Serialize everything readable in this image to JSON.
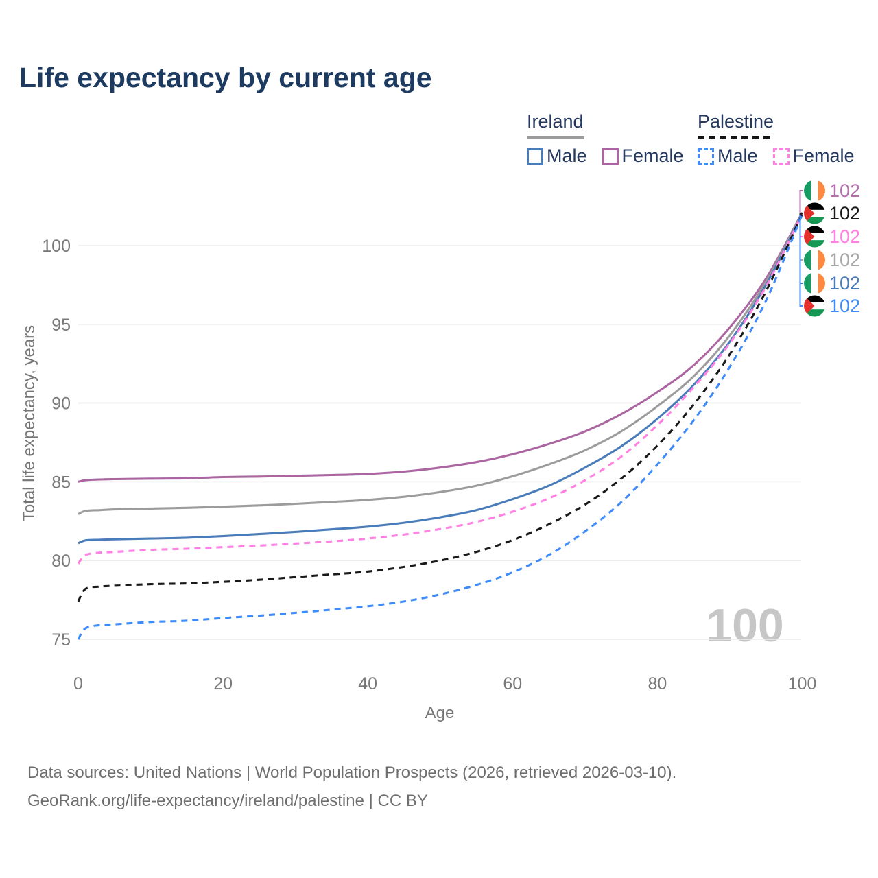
{
  "title": "Life expectancy by current age",
  "legend": {
    "groups": [
      {
        "id": "ireland",
        "label": "Ireland",
        "rule_style": "solid",
        "rule_color": "#9c9c9c",
        "items": [
          {
            "label": "Male",
            "color": "#4a7cba",
            "dashed": false
          },
          {
            "label": "Female",
            "color": "#ab65a0",
            "dashed": false
          }
        ]
      },
      {
        "id": "palestine",
        "label": "Palestine",
        "rule_style": "dashed",
        "rule_color": "#161616",
        "items": [
          {
            "label": "Male",
            "color": "#3f8bfa",
            "dashed": true
          },
          {
            "label": "Female",
            "color": "#ff82e3",
            "dashed": true
          }
        ]
      }
    ]
  },
  "chart_data": {
    "type": "line",
    "title": "Life expectancy by current age",
    "xlabel": "Age",
    "ylabel": "Total life expectancy, years",
    "xlim": [
      0,
      100
    ],
    "ylim": [
      73.5,
      102.5
    ],
    "xticks": [
      0,
      20,
      40,
      60,
      80,
      100
    ],
    "yticks": [
      75,
      80,
      85,
      90,
      95,
      100
    ],
    "grid": "horizontal",
    "legend_position": "top-right",
    "watermark": "100",
    "series": [
      {
        "name": "Ireland Female",
        "country": "Ireland",
        "sex": "Female",
        "color": "#ab65a0",
        "dashed": false,
        "points": [
          [
            0,
            85.0
          ],
          [
            1,
            85.1
          ],
          [
            3,
            85.15
          ],
          [
            5,
            85.17
          ],
          [
            10,
            85.2
          ],
          [
            15,
            85.22
          ],
          [
            20,
            85.3
          ],
          [
            25,
            85.33
          ],
          [
            30,
            85.38
          ],
          [
            35,
            85.43
          ],
          [
            40,
            85.5
          ],
          [
            45,
            85.65
          ],
          [
            50,
            85.9
          ],
          [
            55,
            86.25
          ],
          [
            60,
            86.75
          ],
          [
            65,
            87.4
          ],
          [
            70,
            88.2
          ],
          [
            75,
            89.3
          ],
          [
            80,
            90.7
          ],
          [
            85,
            92.4
          ],
          [
            90,
            94.8
          ],
          [
            95,
            97.9
          ],
          [
            100,
            102.1
          ]
        ]
      },
      {
        "name": "Ireland Both sexes",
        "country": "Ireland",
        "sex": "Both",
        "color": "#9c9c9c",
        "dashed": false,
        "points": [
          [
            0,
            82.95
          ],
          [
            1,
            83.15
          ],
          [
            3,
            83.2
          ],
          [
            5,
            83.25
          ],
          [
            10,
            83.3
          ],
          [
            15,
            83.35
          ],
          [
            20,
            83.42
          ],
          [
            25,
            83.5
          ],
          [
            30,
            83.6
          ],
          [
            35,
            83.72
          ],
          [
            40,
            83.85
          ],
          [
            45,
            84.05
          ],
          [
            50,
            84.35
          ],
          [
            55,
            84.75
          ],
          [
            60,
            85.35
          ],
          [
            65,
            86.1
          ],
          [
            70,
            87.0
          ],
          [
            75,
            88.2
          ],
          [
            80,
            89.8
          ],
          [
            85,
            91.7
          ],
          [
            90,
            94.3
          ],
          [
            95,
            97.7
          ],
          [
            100,
            102.05
          ]
        ]
      },
      {
        "name": "Ireland Male",
        "country": "Ireland",
        "sex": "Male",
        "color": "#4a7cba",
        "dashed": false,
        "points": [
          [
            0,
            81.1
          ],
          [
            1,
            81.28
          ],
          [
            3,
            81.32
          ],
          [
            5,
            81.35
          ],
          [
            10,
            81.4
          ],
          [
            15,
            81.45
          ],
          [
            20,
            81.55
          ],
          [
            25,
            81.68
          ],
          [
            30,
            81.82
          ],
          [
            35,
            81.98
          ],
          [
            40,
            82.15
          ],
          [
            45,
            82.4
          ],
          [
            50,
            82.75
          ],
          [
            55,
            83.2
          ],
          [
            60,
            83.9
          ],
          [
            65,
            84.75
          ],
          [
            70,
            85.9
          ],
          [
            75,
            87.25
          ],
          [
            80,
            89.0
          ],
          [
            85,
            91.15
          ],
          [
            90,
            93.9
          ],
          [
            95,
            97.5
          ],
          [
            100,
            102.0
          ]
        ]
      },
      {
        "name": "Palestine Female",
        "country": "Palestine",
        "sex": "Female",
        "color": "#ff82e3",
        "dashed": true,
        "points": [
          [
            0,
            79.8
          ],
          [
            1,
            80.35
          ],
          [
            3,
            80.5
          ],
          [
            5,
            80.55
          ],
          [
            10,
            80.68
          ],
          [
            15,
            80.75
          ],
          [
            20,
            80.85
          ],
          [
            25,
            80.95
          ],
          [
            30,
            81.08
          ],
          [
            35,
            81.22
          ],
          [
            40,
            81.4
          ],
          [
            45,
            81.65
          ],
          [
            50,
            82.0
          ],
          [
            55,
            82.45
          ],
          [
            60,
            83.1
          ],
          [
            65,
            83.95
          ],
          [
            70,
            85.1
          ],
          [
            75,
            86.6
          ],
          [
            80,
            88.6
          ],
          [
            85,
            91.0
          ],
          [
            90,
            93.8
          ],
          [
            95,
            97.4
          ],
          [
            100,
            102.0
          ]
        ]
      },
      {
        "name": "Palestine Both sexes",
        "country": "Palestine",
        "sex": "Both",
        "color": "#1a1a1a",
        "dashed": true,
        "points": [
          [
            0,
            77.4
          ],
          [
            1,
            78.2
          ],
          [
            3,
            78.35
          ],
          [
            5,
            78.4
          ],
          [
            10,
            78.5
          ],
          [
            15,
            78.55
          ],
          [
            20,
            78.65
          ],
          [
            25,
            78.78
          ],
          [
            30,
            78.95
          ],
          [
            35,
            79.12
          ],
          [
            40,
            79.3
          ],
          [
            45,
            79.6
          ],
          [
            50,
            80.0
          ],
          [
            55,
            80.55
          ],
          [
            60,
            81.3
          ],
          [
            65,
            82.3
          ],
          [
            70,
            83.55
          ],
          [
            75,
            85.2
          ],
          [
            80,
            87.3
          ],
          [
            85,
            89.9
          ],
          [
            90,
            93.1
          ],
          [
            95,
            97.1
          ],
          [
            100,
            102.0
          ]
        ]
      },
      {
        "name": "Palestine Male",
        "country": "Palestine",
        "sex": "Male",
        "color": "#3f8bfa",
        "dashed": true,
        "points": [
          [
            0,
            75.0
          ],
          [
            1,
            75.7
          ],
          [
            3,
            75.9
          ],
          [
            5,
            75.95
          ],
          [
            10,
            76.1
          ],
          [
            15,
            76.18
          ],
          [
            20,
            76.35
          ],
          [
            25,
            76.5
          ],
          [
            30,
            76.68
          ],
          [
            35,
            76.88
          ],
          [
            40,
            77.1
          ],
          [
            45,
            77.4
          ],
          [
            50,
            77.85
          ],
          [
            55,
            78.45
          ],
          [
            60,
            79.25
          ],
          [
            65,
            80.35
          ],
          [
            70,
            81.85
          ],
          [
            75,
            83.7
          ],
          [
            80,
            86.1
          ],
          [
            85,
            88.9
          ],
          [
            90,
            92.3
          ],
          [
            95,
            96.5
          ],
          [
            100,
            101.95
          ]
        ]
      }
    ],
    "end_labels": [
      {
        "series": "Ireland Female",
        "flag": "ireland",
        "value": "102",
        "color": "#b570ae"
      },
      {
        "series": "Palestine Both sexes",
        "flag": "palestine",
        "value": "102",
        "color": "#1a1a1a"
      },
      {
        "series": "Palestine Female",
        "flag": "palestine",
        "value": "102",
        "color": "#ff82e3"
      },
      {
        "series": "Ireland Both sexes",
        "flag": "ireland",
        "value": "102",
        "color": "#a8a8a8"
      },
      {
        "series": "Ireland Male",
        "flag": "ireland",
        "value": "102",
        "color": "#4a7cba"
      },
      {
        "series": "Palestine Male",
        "flag": "palestine",
        "value": "102",
        "color": "#3f8bfa"
      }
    ],
    "flags": {
      "ireland": {
        "stripes": [
          "#169b62",
          "#ffffff",
          "#ff883e"
        ],
        "orientation": "vertical"
      },
      "palestine": {
        "stripes": [
          "#000000",
          "#ffffff",
          "#149954"
        ],
        "triangle": "#e4312b",
        "orientation": "horizontal"
      }
    }
  },
  "footer": {
    "line1": "Data sources: United Nations | World Population Prospects (2026, retrieved 2026-03-10).",
    "line2": "GeoRank.org/life-expectancy/ireland/palestine | CC BY"
  }
}
